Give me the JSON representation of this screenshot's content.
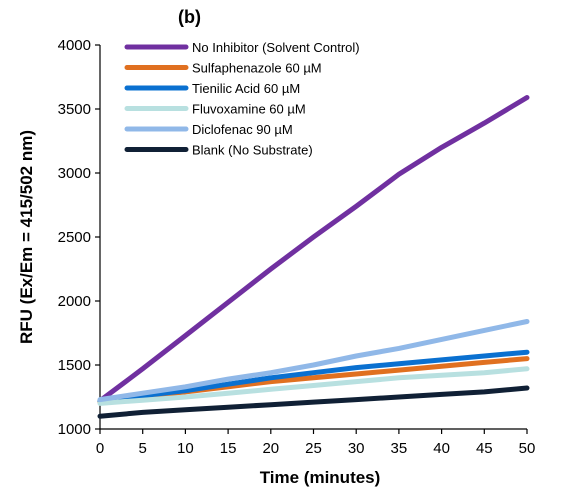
{
  "panel_label": "(b)",
  "chart_data": {
    "type": "line",
    "title": "",
    "xlabel": "Time (minutes)",
    "ylabel": "RFU (Ex/Em = 415/502 nm)",
    "xlim": [
      0,
      50
    ],
    "ylim": [
      1000,
      4000
    ],
    "x_ticks": [
      "0",
      "5",
      "10",
      "15",
      "20",
      "25",
      "30",
      "35",
      "40",
      "45",
      "50"
    ],
    "y_ticks": [
      "1000",
      "1500",
      "2000",
      "2500",
      "3000",
      "3500",
      "4000"
    ],
    "grid": false,
    "legend_position": "top-left",
    "x": [
      0,
      5,
      10,
      15,
      20,
      25,
      30,
      35,
      40,
      45,
      50
    ],
    "series": [
      {
        "name": "No Inhibitor (Solvent Control)",
        "color": "#7030A0",
        "values": [
          1220,
          1470,
          1730,
          1990,
          2250,
          2500,
          2740,
          2990,
          3200,
          3390,
          3590
        ]
      },
      {
        "name": "Sulfaphenazole 60 µM",
        "color": "#E07020",
        "values": [
          1210,
          1250,
          1290,
          1330,
          1370,
          1400,
          1430,
          1460,
          1490,
          1520,
          1550
        ]
      },
      {
        "name": "Tienilic Acid 60 µM",
        "color": "#0A70D0",
        "values": [
          1220,
          1260,
          1300,
          1350,
          1400,
          1440,
          1480,
          1510,
          1540,
          1570,
          1600
        ]
      },
      {
        "name": "Fluvoxamine 60 µM",
        "color": "#B8E0E0",
        "values": [
          1200,
          1225,
          1250,
          1280,
          1310,
          1340,
          1370,
          1400,
          1420,
          1440,
          1470
        ]
      },
      {
        "name": "Diclofenac 90 µM",
        "color": "#90B8E8",
        "values": [
          1230,
          1280,
          1330,
          1390,
          1440,
          1500,
          1570,
          1630,
          1700,
          1770,
          1840
        ]
      },
      {
        "name": "Blank (No Substrate)",
        "color": "#102035",
        "values": [
          1100,
          1130,
          1150,
          1170,
          1190,
          1210,
          1230,
          1250,
          1270,
          1290,
          1320
        ]
      }
    ]
  }
}
